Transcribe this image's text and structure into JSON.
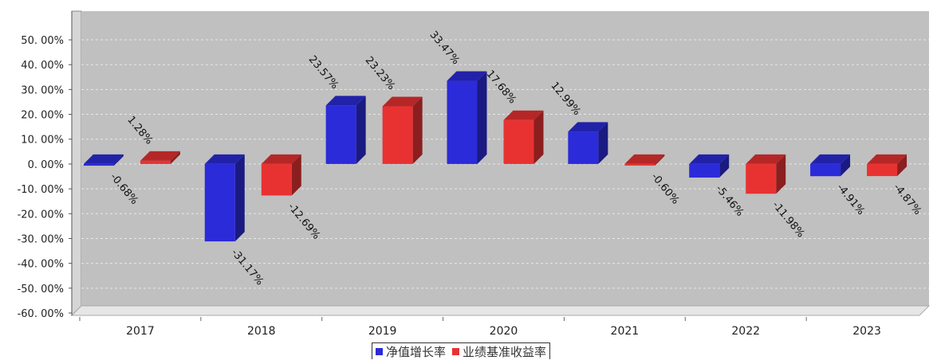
{
  "chart_data": {
    "type": "bar",
    "categories": [
      "2017",
      "2018",
      "2019",
      "2020",
      "2021",
      "2022",
      "2023"
    ],
    "series": [
      {
        "name": "净值增长率",
        "values": [
          -0.68,
          -31.17,
          23.57,
          33.47,
          12.99,
          -5.46,
          -4.91
        ],
        "labels": [
          "-0.68%",
          "-31.17%",
          "23.57%",
          "33.47%",
          "12.99%",
          "-5.46%",
          "-4.91%"
        ],
        "color": "#2b2bd9"
      },
      {
        "name": "业绩基准收益率",
        "values": [
          1.28,
          -12.69,
          23.23,
          17.68,
          -0.6,
          -11.98,
          -4.87
        ],
        "labels": [
          "1.28%",
          "-12.69%",
          "23.23%",
          "17.68%",
          "-0.60%",
          "-11.98%",
          "-4.87%"
        ],
        "color": "#e83232"
      }
    ],
    "ylim": [
      -60,
      50
    ],
    "yticks": [
      50,
      40,
      30,
      20,
      10,
      0,
      -10,
      -20,
      -30,
      -40,
      -50,
      -60
    ],
    "ytick_labels": [
      "50. 00%",
      "40. 00%",
      "30. 00%",
      "20. 00%",
      "10. 00%",
      "0. 00%",
      "-10. 00%",
      "-20. 00%",
      "-30. 00%",
      "-40. 00%",
      "-50. 00%",
      "-60. 00%"
    ],
    "grid": true,
    "legend": "bottom-center",
    "plot_background": "#c0c0c0"
  }
}
